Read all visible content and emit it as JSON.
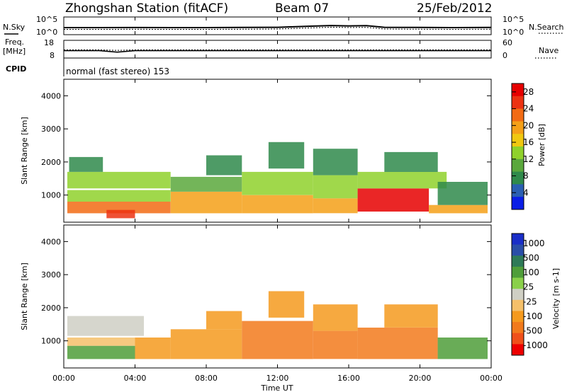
{
  "header": {
    "title": "Zhongshan Station (fitACF)",
    "beam": "Beam 07",
    "date": "25/Feb/2012"
  },
  "panels": {
    "nsky": {
      "label": "N.Sky",
      "right_label": "N.Search",
      "ticks_left": [
        "10^5",
        "10^0"
      ],
      "ticks_right": [
        "10^5",
        "10^0"
      ]
    },
    "freq": {
      "label": "Freq.",
      "unit": "[MHz]",
      "right_label": "Nave",
      "ticks_left": [
        "18",
        "8"
      ],
      "ticks_right": [
        "60",
        "0"
      ]
    },
    "cpid": {
      "label": "CPID",
      "text": "normal (fast stereo) 153"
    }
  },
  "colors": {
    "power_scale": [
      "#0a1ee6",
      "#2a5fb2",
      "#2f8a4b",
      "#5aa83c",
      "#8fd12b",
      "#f0c810",
      "#f5a018",
      "#f26b14",
      "#ec3212",
      "#e60000"
    ],
    "velocity_scale": [
      "#ee0000",
      "#f0501a",
      "#f27a1c",
      "#f59a1e",
      "#f5c06a",
      "#cfcfc4",
      "#8ad04a",
      "#4f9e3a",
      "#2e7a58",
      "#2a4ea8",
      "#1a2ec8"
    ]
  },
  "chart_data": [
    {
      "type": "line",
      "title": "N.Sky",
      "y_scale": "log",
      "ylim": [
        1,
        100000
      ],
      "x": [
        "00:00",
        "02:00",
        "04:00",
        "06:00",
        "08:00",
        "10:00",
        "12:00",
        "14:00",
        "15:00",
        "16:00",
        "17:00",
        "18:00",
        "20:00",
        "22:00",
        "24:00"
      ],
      "series": [
        {
          "name": "N.Sky",
          "values": [
            80,
            80,
            85,
            80,
            80,
            90,
            100,
            250,
            400,
            300,
            350,
            100,
            90,
            80,
            90
          ]
        },
        {
          "name": "N.Search",
          "values": [
            60,
            60,
            65,
            60,
            60,
            70,
            80,
            200,
            320,
            250,
            280,
            80,
            70,
            60,
            70
          ]
        }
      ]
    },
    {
      "type": "line",
      "title": "Freq. [MHz]",
      "ylim": [
        8,
        18
      ],
      "x": [
        "00:00",
        "02:00",
        "03:00",
        "04:00",
        "08:00",
        "12:00",
        "16:00",
        "20:00",
        "24:00"
      ],
      "series": [
        {
          "name": "Freq.",
          "values": [
            12,
            12,
            11,
            12,
            12,
            12,
            12,
            12,
            12
          ]
        },
        {
          "name": "Nave",
          "values": [
            30,
            30,
            28,
            30,
            30,
            30,
            30,
            30,
            30
          ]
        }
      ]
    },
    {
      "type": "heatmap",
      "title": "Power [dB]",
      "ylabel": "Slant Range [km]",
      "xlabel": "Time UT",
      "x_ticks": [
        "00:00",
        "04:00",
        "08:00",
        "12:00",
        "16:00",
        "20:00",
        "00:00"
      ],
      "y_ticks": [
        "1000",
        "2000",
        "3000",
        "4000"
      ],
      "ylim": [
        180,
        4500
      ],
      "xlim": [
        0,
        24
      ],
      "colorbar": {
        "label": "Power [dB]",
        "ticks": [
          "4",
          "8",
          "12",
          "16",
          "20",
          "24",
          "28"
        ],
        "range": [
          0,
          30
        ]
      },
      "regions": [
        {
          "t0": 0.2,
          "t1": 6.0,
          "r0": 450,
          "r1": 800,
          "value": 22
        },
        {
          "t0": 0.2,
          "t1": 6.0,
          "r0": 800,
          "r1": 1150,
          "value": 14
        },
        {
          "t0": 0.2,
          "t1": 6.0,
          "r0": 1200,
          "r1": 1700,
          "value": 12
        },
        {
          "t0": 0.3,
          "t1": 2.2,
          "r0": 1700,
          "r1": 2150,
          "value": 6
        },
        {
          "t0": 2.4,
          "t1": 4.0,
          "r0": 300,
          "r1": 550,
          "value": 26
        },
        {
          "t0": 6.0,
          "t1": 10.0,
          "r0": 450,
          "r1": 1100,
          "value": 18
        },
        {
          "t0": 6.0,
          "t1": 10.0,
          "r0": 1100,
          "r1": 1550,
          "value": 10
        },
        {
          "t0": 8.0,
          "t1": 10.0,
          "r0": 1600,
          "r1": 2200,
          "value": 6
        },
        {
          "t0": 10.0,
          "t1": 14.0,
          "r0": 450,
          "r1": 1000,
          "value": 18
        },
        {
          "t0": 10.0,
          "t1": 14.0,
          "r0": 1000,
          "r1": 1700,
          "value": 12
        },
        {
          "t0": 11.5,
          "t1": 13.5,
          "r0": 1800,
          "r1": 2600,
          "value": 8
        },
        {
          "t0": 14.0,
          "t1": 16.5,
          "r0": 450,
          "r1": 900,
          "value": 20
        },
        {
          "t0": 14.0,
          "t1": 16.5,
          "r0": 900,
          "r1": 1600,
          "value": 12
        },
        {
          "t0": 14.0,
          "t1": 16.5,
          "r0": 1600,
          "r1": 2400,
          "value": 8
        },
        {
          "t0": 16.5,
          "t1": 20.5,
          "r0": 500,
          "r1": 1200,
          "value": 28
        },
        {
          "t0": 16.5,
          "t1": 21.5,
          "r0": 1200,
          "r1": 1700,
          "value": 14
        },
        {
          "t0": 18.0,
          "t1": 21.0,
          "r0": 1700,
          "r1": 2300,
          "value": 8
        },
        {
          "t0": 20.5,
          "t1": 23.8,
          "r0": 450,
          "r1": 700,
          "value": 20
        },
        {
          "t0": 21.0,
          "t1": 23.8,
          "r0": 700,
          "r1": 1400,
          "value": 8
        }
      ]
    },
    {
      "type": "heatmap",
      "title": "Velocity [m s^-1]",
      "ylabel": "Slant Range [km]",
      "xlabel": "Time UT",
      "x_ticks": [
        "00:00",
        "04:00",
        "08:00",
        "12:00",
        "16:00",
        "20:00",
        "00:00"
      ],
      "y_ticks": [
        "1000",
        "2000",
        "3000",
        "4000"
      ],
      "ylim": [
        180,
        4500
      ],
      "xlim": [
        0,
        24
      ],
      "colorbar": {
        "label": "Velocity [m s-1]",
        "ticks": [
          "1000",
          "500",
          "100",
          "25",
          "-25",
          "-100",
          "-500",
          "-1000"
        ]
      },
      "regions": [
        {
          "t0": 0.2,
          "t1": 4.0,
          "r0": 450,
          "r1": 850,
          "value": 150
        },
        {
          "t0": 0.2,
          "t1": 4.0,
          "r0": 850,
          "r1": 1100,
          "value": -80
        },
        {
          "t0": 0.2,
          "t1": 4.5,
          "r0": 1150,
          "r1": 1750,
          "value": 0
        },
        {
          "t0": 4.0,
          "t1": 6.0,
          "r0": 450,
          "r1": 1100,
          "value": -150
        },
        {
          "t0": 6.0,
          "t1": 10.0,
          "r0": 450,
          "r1": 1350,
          "value": -200
        },
        {
          "t0": 8.0,
          "t1": 10.0,
          "r0": 1350,
          "r1": 1900,
          "value": -150
        },
        {
          "t0": 10.0,
          "t1": 14.0,
          "r0": 450,
          "r1": 1600,
          "value": -250
        },
        {
          "t0": 11.5,
          "t1": 13.5,
          "r0": 1700,
          "r1": 2500,
          "value": -150
        },
        {
          "t0": 14.0,
          "t1": 16.5,
          "r0": 450,
          "r1": 1300,
          "value": -300
        },
        {
          "t0": 14.0,
          "t1": 16.5,
          "r0": 1300,
          "r1": 2100,
          "value": -120
        },
        {
          "t0": 16.5,
          "t1": 21.0,
          "r0": 450,
          "r1": 1400,
          "value": -300
        },
        {
          "t0": 18.0,
          "t1": 21.0,
          "r0": 1400,
          "r1": 2100,
          "value": -200
        },
        {
          "t0": 21.0,
          "t1": 23.8,
          "r0": 450,
          "r1": 1100,
          "value": 150
        }
      ]
    }
  ]
}
